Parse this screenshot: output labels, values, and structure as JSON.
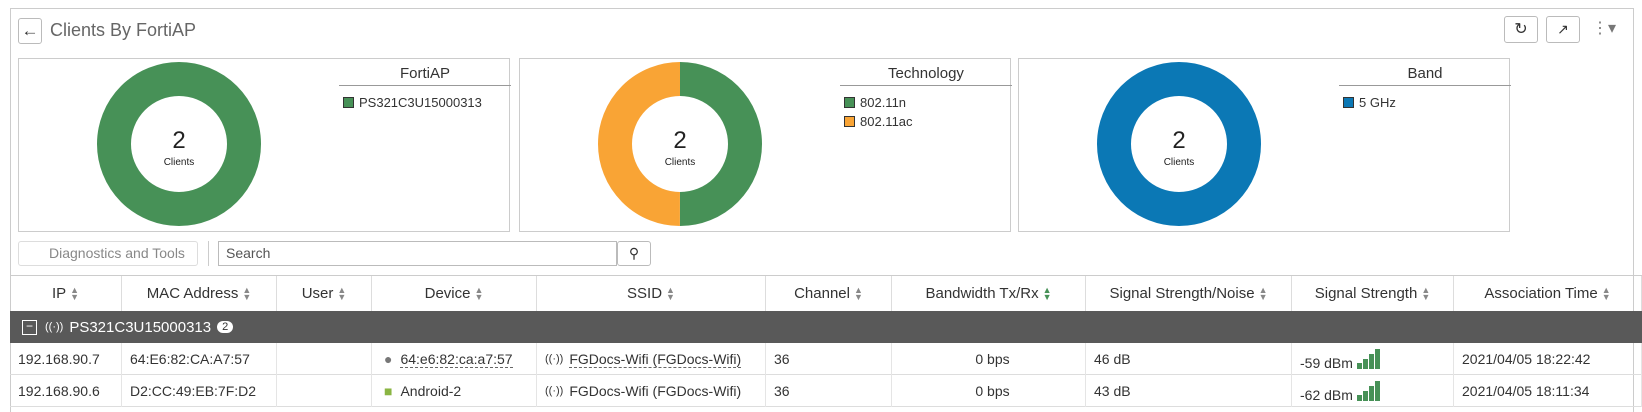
{
  "header": {
    "title": "Clients By FortiAP"
  },
  "panels": [
    {
      "type": "pie",
      "title": "FortiAP",
      "center_value": 2,
      "center_label": "Clients",
      "items": [
        {
          "name": "PS321C3U15000313",
          "color": "#479157",
          "value": 2
        }
      ]
    },
    {
      "type": "pie",
      "title": "Technology",
      "center_value": 2,
      "center_label": "Clients",
      "items": [
        {
          "name": "802.11n",
          "color": "#479157",
          "value": 1
        },
        {
          "name": "802.11ac",
          "color": "#f9a435",
          "value": 1
        }
      ]
    },
    {
      "type": "pie",
      "title": "Band",
      "center_value": 2,
      "center_label": "Clients",
      "items": [
        {
          "name": "5 GHz",
          "color": "#0b78b5",
          "value": 2
        }
      ]
    }
  ],
  "toolbar": {
    "diagnostics": "Diagnostics and Tools",
    "search_placeholder": "Search"
  },
  "table": {
    "columns": [
      "IP",
      "MAC Address",
      "User",
      "Device",
      "SSID",
      "Channel",
      "Bandwidth Tx/Rx",
      "Signal Strength/Noise",
      "Signal Strength",
      "Association Time"
    ],
    "group": {
      "name": "PS321C3U15000313",
      "count": 2
    },
    "rows": [
      {
        "ip": "192.168.90.7",
        "mac": "64:E6:82:CA:A7:57",
        "device": "64:e6:82:ca:a7:57",
        "ssid": "FGDocs-Wifi (FGDocs-Wifi)",
        "channel": 36,
        "bandwidth": "0 bps",
        "snr": "46 dB",
        "signal": "-59 dBm",
        "time": "2021/04/05 18:22:42"
      },
      {
        "ip": "192.168.90.6",
        "mac": "D2:CC:49:EB:7F:D2",
        "device": "Android-2",
        "ssid": "FGDocs-Wifi (FGDocs-Wifi)",
        "channel": 36,
        "bandwidth": "0 bps",
        "snr": "43 dB",
        "signal": "-62 dBm",
        "time": "2021/04/05 18:11:34"
      }
    ]
  }
}
